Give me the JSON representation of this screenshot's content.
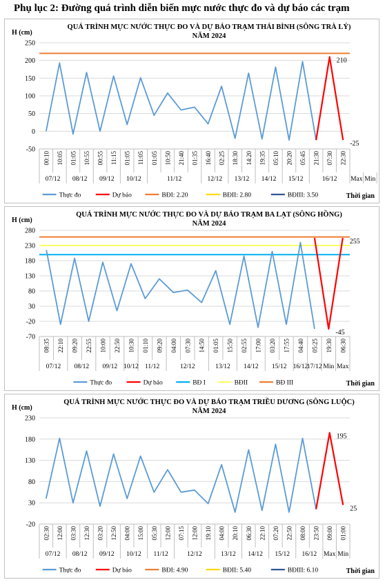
{
  "page_title": "Phụ lục 2: Đường quá trình diễn biến mực nước thực đo và dự báo các trạm",
  "chart_data": [
    {
      "type": "line",
      "title": "QUÁ TRÌNH MỰC NƯỚC THỰC ĐO VÀ DỰ BÁO TRẠM THÁI BÌNH (SÔNG TRÀ LÝ)",
      "subtitle": "NĂM 2024",
      "ylabel": "H (cm)",
      "xlabel": "Thời gian",
      "ylim": [
        -50,
        250
      ],
      "yticks": [
        -50,
        0,
        50,
        100,
        150,
        200,
        250
      ],
      "categories": [
        "00:10",
        "10:05",
        "01:05",
        "10:55",
        "00:55",
        "11:15",
        "01:05",
        "11:05",
        "01:05",
        "10:50",
        "21:40",
        "01:35",
        "16:40",
        "02:25",
        "18:30",
        "14:20",
        "19:35",
        "05:10",
        "20:20",
        "05:45",
        "21:30",
        "07:30",
        "22:30"
      ],
      "date_groups": [
        {
          "label": "07/12",
          "span": 2
        },
        {
          "label": "08/12",
          "span": 2
        },
        {
          "label": "09/12",
          "span": 2
        },
        {
          "label": "10/12",
          "span": 2
        },
        {
          "label": "11/12",
          "span": 4
        },
        {
          "label": "12/12",
          "span": 2
        },
        {
          "label": "13/12",
          "span": 2
        },
        {
          "label": "14/12",
          "span": 2
        },
        {
          "label": "15/12",
          "span": 2
        },
        {
          "label": "16/12",
          "span": 3
        },
        {
          "label": "Max",
          "span": 1
        },
        {
          "label": "Min",
          "span": 1
        }
      ],
      "series": [
        {
          "name": "Thực đo",
          "color": "#5b9bd5",
          "values": [
            0,
            193,
            -8,
            166,
            0,
            156,
            19,
            151,
            45,
            108,
            60,
            68,
            21,
            127,
            -20,
            164,
            -22,
            181,
            -25,
            197,
            -25,
            null,
            null
          ]
        },
        {
          "name": "Dự báo",
          "color": "#ff0000",
          "values": [
            null,
            null,
            null,
            null,
            null,
            null,
            null,
            null,
            null,
            null,
            null,
            null,
            null,
            null,
            null,
            null,
            null,
            null,
            null,
            null,
            -25,
            210,
            -25
          ]
        }
      ],
      "levels": [
        {
          "name": "BĐI: 2.20",
          "value": 220,
          "color": "#ed7d31",
          "show_line": true
        },
        {
          "name": "BĐII: 2.80",
          "value": 280,
          "color": "#ffd700",
          "show_line": false
        },
        {
          "name": "BĐIII: 3.50",
          "value": 350,
          "color": "#2e5597",
          "show_line": false
        }
      ],
      "annotations": [
        {
          "text": "210",
          "index": 21,
          "value": 210
        },
        {
          "text": "-25",
          "index": 22,
          "value": -25
        }
      ]
    },
    {
      "type": "line",
      "title": "QUÁ TRÌNH MỰC NƯỚC THỰC ĐO VÀ DỰ BÁO TRẠM BA LẠT (SÔNG HỒNG)",
      "subtitle": "NĂM 2024",
      "ylabel": "H (cm)",
      "xlabel": "Thời gian",
      "ylim": [
        -70,
        280
      ],
      "yticks": [
        -70,
        -20,
        30,
        80,
        130,
        180,
        230,
        280
      ],
      "categories": [
        "08:35",
        "22:10",
        "09:20",
        "22:55",
        "10:00",
        "22:50",
        "10:30",
        "01:10",
        "09:20",
        "04:00",
        "07:30",
        "14:50",
        "01:05",
        "15:50",
        "02:55",
        "17:00",
        "03:20",
        "17:55",
        "04:40",
        "05:25",
        "19:30",
        "06:30"
      ],
      "date_groups": [
        {
          "label": "07/12",
          "span": 2
        },
        {
          "label": "08/12",
          "span": 2
        },
        {
          "label": "09/12",
          "span": 2
        },
        {
          "label": "10/12",
          "span": 1
        },
        {
          "label": "11/12",
          "span": 2
        },
        {
          "label": "12/12",
          "span": 3
        },
        {
          "label": "13/12",
          "span": 2
        },
        {
          "label": "14/12",
          "span": 2
        },
        {
          "label": "15/12",
          "span": 2
        },
        {
          "label": "16/12",
          "span": 1
        },
        {
          "label": "17/12",
          "span": 1
        },
        {
          "label": "Min",
          "span": 1
        },
        {
          "label": "Max",
          "span": 1
        }
      ],
      "series": [
        {
          "name": "Thực đo",
          "color": "#5b9bd5",
          "values": [
            215,
            -30,
            188,
            -20,
            175,
            15,
            170,
            55,
            120,
            75,
            83,
            42,
            147,
            -30,
            195,
            -40,
            210,
            -30,
            240,
            -45,
            null,
            null
          ]
        },
        {
          "name": "Dự báo",
          "color": "#ff0000",
          "values": [
            null,
            null,
            null,
            null,
            null,
            null,
            null,
            null,
            null,
            null,
            null,
            null,
            null,
            null,
            null,
            null,
            null,
            null,
            null,
            255,
            -45,
            255
          ]
        }
      ],
      "levels": [
        {
          "name": "BĐ I",
          "value": 200,
          "color": "#00b0f0",
          "show_line": true
        },
        {
          "name": "BĐII",
          "value": 230,
          "color": "#ffff66",
          "show_line": true
        },
        {
          "name": "BĐ III",
          "value": 258,
          "color": "#ed7d31",
          "show_line": true
        }
      ],
      "annotations": [
        {
          "text": "255",
          "index": 21,
          "value": 255
        },
        {
          "text": "-45",
          "index": 20,
          "value": -45
        }
      ]
    },
    {
      "type": "line",
      "title": "QUÁ TRÌNH MỰC NƯỚC THỰC ĐO VÀ DỰ BÁO TRẠM TRIỀU DƯƠNG (SÔNG LUỘC)",
      "subtitle": "NĂM 2024",
      "ylabel": "H (cm)",
      "xlabel": "Thời gian",
      "ylim": [
        -20,
        230
      ],
      "yticks": [
        -20,
        30,
        80,
        130,
        180,
        230
      ],
      "categories": [
        "02:30",
        "12:00",
        "03:30",
        "12:30",
        "03:20",
        "12:50",
        "04:00",
        "15:00",
        "05:30",
        "12:00",
        "07:15",
        "12:00",
        "19:10",
        "04:00",
        "20:10",
        "06:30",
        "22:10",
        "07:20",
        "22:50",
        "08:00",
        "23:50",
        "09:00",
        "01:00"
      ],
      "date_groups": [
        {
          "label": "07/12",
          "span": 2
        },
        {
          "label": "08/12",
          "span": 2
        },
        {
          "label": "09/12",
          "span": 2
        },
        {
          "label": "10/12",
          "span": 2
        },
        {
          "label": "11/12",
          "span": 2
        },
        {
          "label": "12/12",
          "span": 3
        },
        {
          "label": "13/12",
          "span": 2
        },
        {
          "label": "14/12",
          "span": 2
        },
        {
          "label": "15/12",
          "span": 2
        },
        {
          "label": "16/12",
          "span": 2
        },
        {
          "label": "Max",
          "span": 1
        },
        {
          "label": "Min",
          "span": 1
        }
      ],
      "series": [
        {
          "name": "Thực đo",
          "color": "#5b9bd5",
          "values": [
            40,
            182,
            30,
            152,
            22,
            145,
            40,
            140,
            55,
            108,
            55,
            60,
            28,
            120,
            8,
            155,
            12,
            168,
            8,
            182,
            15,
            null,
            null
          ]
        },
        {
          "name": "Dự báo",
          "color": "#ff0000",
          "values": [
            null,
            null,
            null,
            null,
            null,
            null,
            null,
            null,
            null,
            null,
            null,
            null,
            null,
            null,
            null,
            null,
            null,
            null,
            null,
            null,
            15,
            195,
            25
          ]
        }
      ],
      "levels": [
        {
          "name": "BĐI: 4.90",
          "value": 490,
          "color": "#ed7d31",
          "show_line": false
        },
        {
          "name": "BĐII: 5.40",
          "value": 540,
          "color": "#ffd700",
          "show_line": false
        },
        {
          "name": "BĐIII: 6.10",
          "value": 610,
          "color": "#2e5597",
          "show_line": false
        }
      ],
      "annotations": [
        {
          "text": "195",
          "index": 21,
          "value": 195
        },
        {
          "text": "25",
          "index": 22,
          "value": 25
        }
      ]
    }
  ]
}
